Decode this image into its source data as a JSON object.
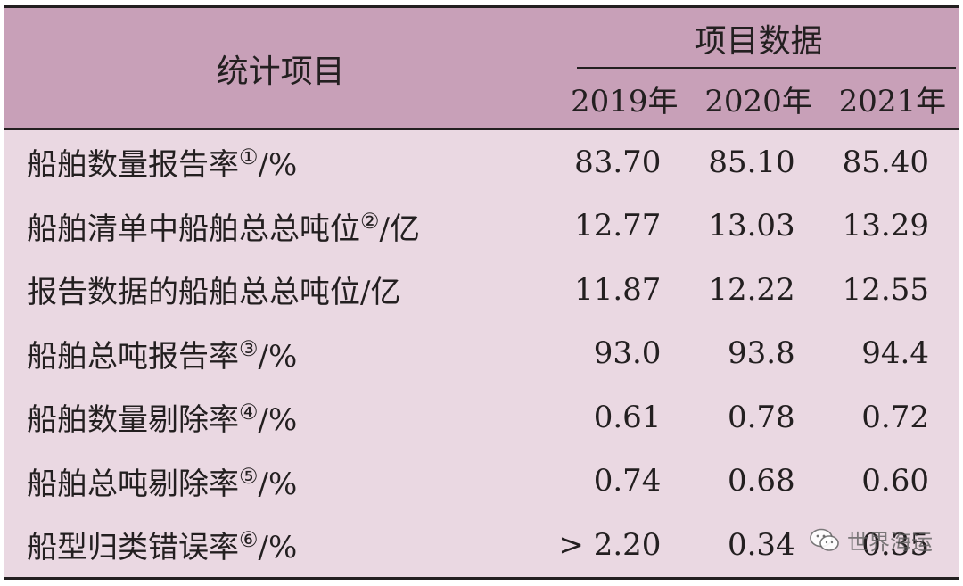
{
  "table": {
    "item_header": "统计项目",
    "group_header": "项目数据",
    "years": [
      "2019年",
      "2020年",
      "2021年"
    ],
    "rows": [
      {
        "label": "船舶数量报告率",
        "marker": "①",
        "unit": "/%",
        "values": [
          "83.70",
          "85.10",
          "85.40"
        ]
      },
      {
        "label": "船舶清单中船舶总总吨位",
        "marker": "②",
        "unit": "/亿",
        "values": [
          "12.77",
          "13.03",
          "13.29"
        ]
      },
      {
        "label": "报告数据的船舶总总吨位/亿",
        "marker": "",
        "unit": "",
        "values": [
          "11.87",
          "12.22",
          "12.55"
        ]
      },
      {
        "label": "船舶总吨报告率",
        "marker": "③",
        "unit": "/%",
        "values": [
          "93.0",
          "93.8",
          "94.4"
        ]
      },
      {
        "label": "船舶数量剔除率",
        "marker": "④",
        "unit": "/%",
        "values": [
          "0.61",
          "0.78",
          "0.72"
        ]
      },
      {
        "label": "船舶总吨剔除率",
        "marker": "⑤",
        "unit": "/%",
        "values": [
          "0.74",
          "0.68",
          "0.60"
        ]
      },
      {
        "label": "船型归类错误率",
        "marker": "⑥",
        "unit": "/%",
        "values": [
          "> 2.20",
          "0.34",
          "0.35"
        ]
      }
    ]
  },
  "watermark": {
    "text": "世界海运",
    "icon": "wechat-icon"
  },
  "colors": {
    "header_bg": "#c8a0b8",
    "body_bg": "#ead8e2",
    "rule": "#231f20",
    "text": "#231f20"
  }
}
